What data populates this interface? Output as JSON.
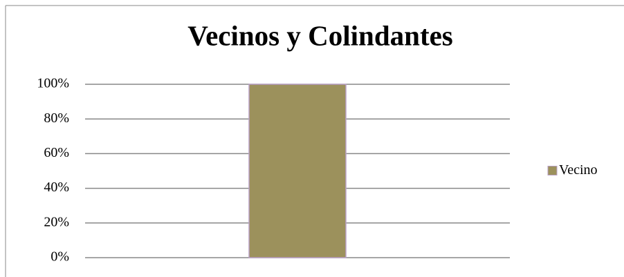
{
  "chart_data": {
    "type": "bar",
    "title": "Vecinos  y Colindantes",
    "categories": [
      null
    ],
    "series": [
      {
        "name": "Vecino",
        "color": "#9c915c",
        "values": [
          100
        ]
      }
    ],
    "ylim": [
      0,
      100
    ],
    "yticks": [
      {
        "value": 0,
        "label": "0%"
      },
      {
        "value": 20,
        "label": "20%"
      },
      {
        "value": 40,
        "label": "40%"
      },
      {
        "value": 60,
        "label": "60%"
      },
      {
        "value": 80,
        "label": "80%"
      },
      {
        "value": 100,
        "label": "100%"
      }
    ],
    "grid": true,
    "legend": "right"
  }
}
